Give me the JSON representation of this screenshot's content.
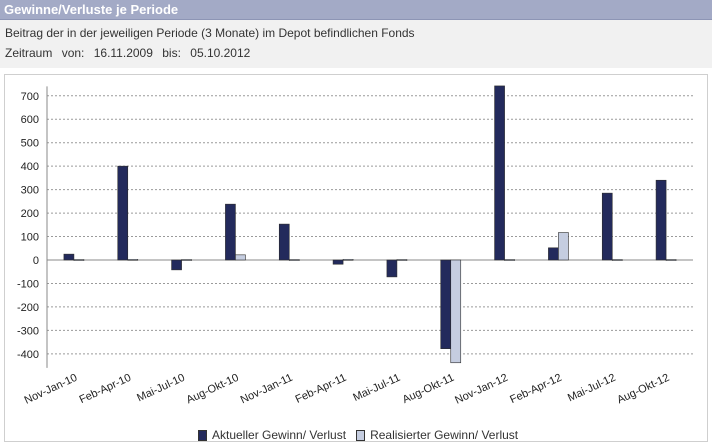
{
  "header": {
    "title": "Gewinne/Verluste je Periode"
  },
  "info": {
    "subtitle": "Beitrag der in der jeweiligen Periode (3 Monate) im Depot befindlichen Fonds",
    "zeitraum_label": "Zeitraum",
    "von_label": "von:",
    "von_value": "16.11.2009",
    "bis_label": "bis:",
    "bis_value": "05.10.2012"
  },
  "chart_data": {
    "type": "bar",
    "title": "Gewinne/Verluste je Periode",
    "xlabel": "",
    "ylabel": "",
    "ylim": [
      -500,
      800
    ],
    "yticks": [
      700,
      600,
      500,
      400,
      300,
      200,
      100,
      0,
      -100,
      -200,
      -300,
      -400
    ],
    "grid": true,
    "legend_position": "bottom",
    "categories": [
      "Nov-Jan-10",
      "Feb-Apr-10",
      "Mai-Jul-10",
      "Aug-Okt-10",
      "Nov-Jan-11",
      "Feb-Apr-11",
      "Mai-Jul-11",
      "Aug-Okt-11",
      "Nov-Jan-12",
      "Feb-Apr-12",
      "Mai-Jul-12",
      "Aug-Okt-12"
    ],
    "series": [
      {
        "name": "Aktueller Gewinn/ Verlust",
        "color": "#232a5c",
        "values": [
          25,
          400,
          -42,
          238,
          153,
          -18,
          -72,
          -378,
          742,
          52,
          285,
          340
        ]
      },
      {
        "name": "Realisierter Gewinn/ Verlust",
        "color": "#c5cde0",
        "values": [
          2,
          3,
          2,
          22,
          2,
          3,
          2,
          -438,
          2,
          117,
          2,
          2
        ]
      }
    ]
  }
}
